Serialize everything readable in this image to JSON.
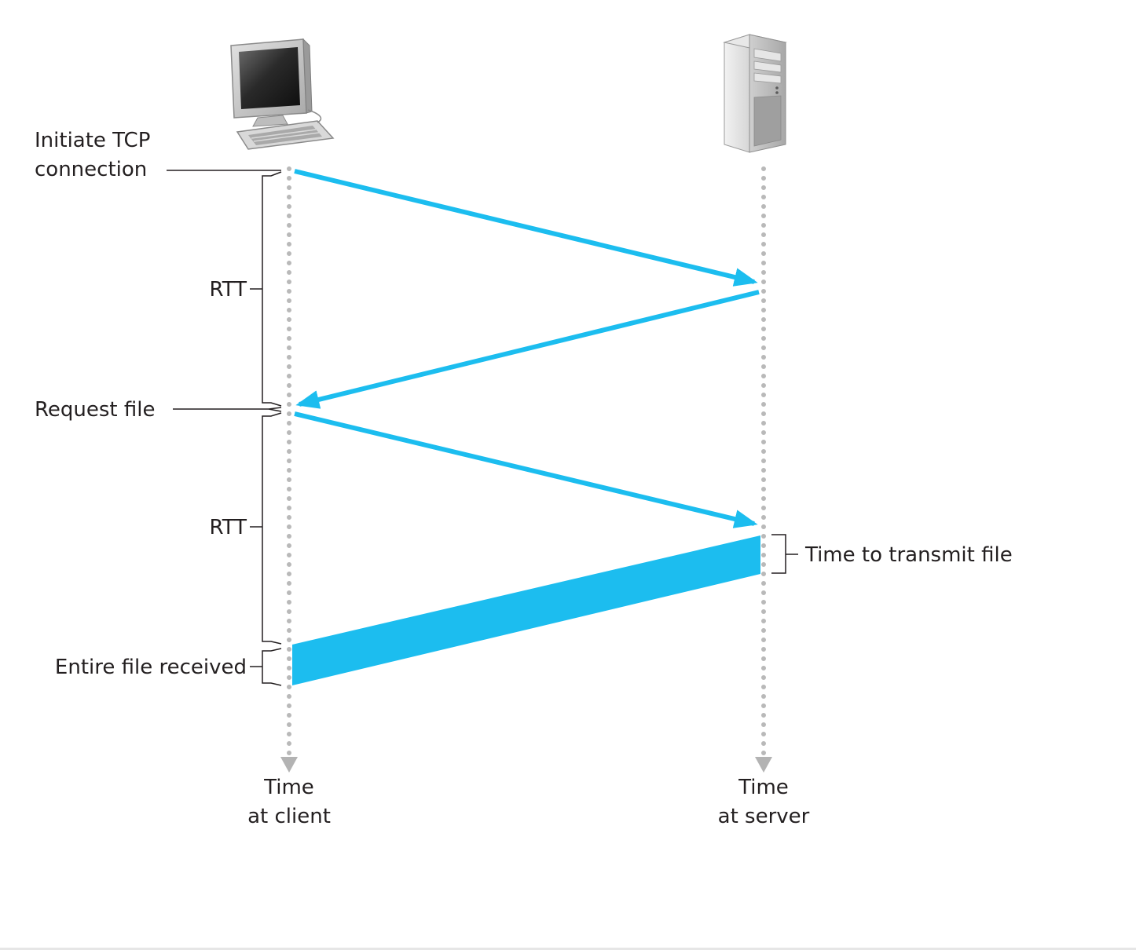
{
  "labels": {
    "initiate_line1": "Initiate TCP",
    "initiate_line2": "connection",
    "rtt_first": "RTT",
    "request_file": "Request file",
    "rtt_second": "RTT",
    "time_to_transmit": "Time to transmit file",
    "entire_file_received": "Entire file received",
    "client_time_line1": "Time",
    "client_time_line2": "at client",
    "server_time_line1": "Time",
    "server_time_line2": "at server"
  },
  "icons": {
    "client": "desktop-computer-icon",
    "server": "tower-server-icon"
  },
  "colors": {
    "message": "#1cbdef",
    "timeline": "#b9b9b9",
    "bracket": "#231f20",
    "text": "#231f20"
  }
}
